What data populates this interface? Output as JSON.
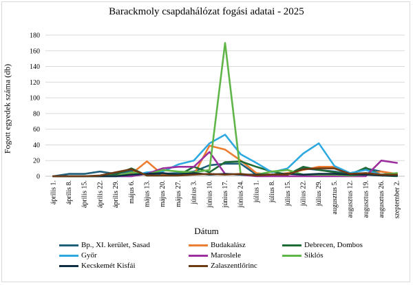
{
  "chart_data": {
    "type": "line",
    "title": "Barackmoly csapdahálózat fogási adatai - 2025",
    "xlabel": "Dátum",
    "ylabel": "Fogott egyedek száma (db)",
    "ylim": [
      0,
      180
    ],
    "yticks": [
      0,
      20,
      40,
      60,
      80,
      100,
      120,
      140,
      160,
      180
    ],
    "grid": true,
    "legend_position": "bottom",
    "categories": [
      "április 1.",
      "április 8.",
      "április 15.",
      "április 22.",
      "április 29.",
      "május 6.",
      "május 13.",
      "május 20.",
      "május 27.",
      "június 3.",
      "június 10.",
      "június 17.",
      "június 24.",
      "július 1.",
      "július 8.",
      "július 15.",
      "július 22.",
      "július 29.",
      "augusztus 5.",
      "augusztus 12.",
      "augusztus 19.",
      "augusztus 26.",
      "szeptember 2."
    ],
    "series": [
      {
        "name": "Bp., XI. kerület, Sasad",
        "color": "#1f5f7a",
        "values": [
          0,
          3,
          3,
          6,
          3,
          7,
          2,
          3,
          4,
          6,
          14,
          16,
          16,
          2,
          2,
          3,
          10,
          8,
          6,
          3,
          10,
          6,
          2
        ]
      },
      {
        "name": "Budakalász",
        "color": "#ed7d31",
        "values": [
          0,
          0,
          0,
          0,
          1,
          3,
          19,
          2,
          2,
          2,
          39,
          34,
          20,
          4,
          2,
          4,
          8,
          12,
          12,
          3,
          3,
          6,
          3
        ]
      },
      {
        "name": "Debrecen, Dombos",
        "color": "#1e6b36",
        "values": [
          0,
          0,
          0,
          0,
          2,
          10,
          1,
          1,
          1,
          12,
          5,
          18,
          19,
          12,
          6,
          2,
          12,
          8,
          5,
          2,
          11,
          1,
          0
        ]
      },
      {
        "name": "Győr",
        "color": "#2ea9e0",
        "values": [
          0,
          0,
          0,
          0,
          0,
          0,
          5,
          6,
          15,
          20,
          42,
          53,
          28,
          17,
          5,
          10,
          29,
          42,
          13,
          4,
          8,
          2,
          1
        ]
      },
      {
        "name": "Maroslele",
        "color": "#9b2f9e",
        "values": [
          0,
          0,
          0,
          0,
          0,
          0,
          3,
          10,
          12,
          12,
          31,
          3,
          2,
          0,
          0,
          0,
          0,
          0,
          0,
          0,
          0,
          20,
          17
        ]
      },
      {
        "name": "Siklós",
        "color": "#5fb548",
        "values": [
          0,
          0,
          0,
          0,
          0,
          5,
          2,
          8,
          6,
          5,
          8,
          170,
          2,
          2,
          6,
          8,
          2,
          2,
          2,
          1,
          2,
          2,
          4
        ]
      },
      {
        "name": "Kecskemét Kisfái",
        "color": "#0d2e40",
        "values": [
          0,
          0,
          0,
          0,
          0,
          2,
          3,
          4,
          2,
          4,
          2,
          3,
          2,
          2,
          2,
          3,
          2,
          3,
          3,
          2,
          2,
          1,
          1
        ]
      },
      {
        "name": "Zalaszentlőrinc",
        "color": "#6e3a14",
        "values": [
          0,
          0,
          0,
          1,
          5,
          9,
          1,
          1,
          1,
          2,
          3,
          2,
          3,
          1,
          2,
          2,
          9,
          10,
          10,
          3,
          4,
          2,
          2
        ]
      }
    ]
  }
}
